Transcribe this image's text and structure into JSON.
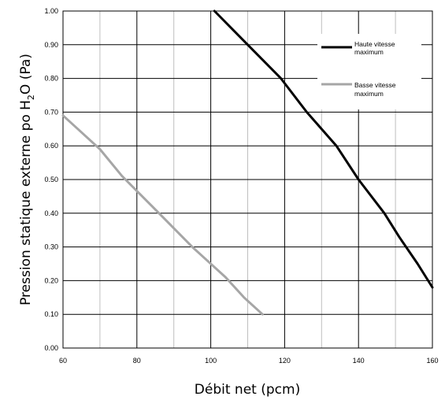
{
  "chart_data": {
    "type": "line",
    "xlabel": "Débit net (pcm)",
    "ylabel_main": "Pression statique externe po H",
    "ylabel_sub": "2",
    "ylabel_tail": "O (Pa)",
    "xlim": [
      60,
      160
    ],
    "ylim": [
      0,
      1.0
    ],
    "x_ticks": [
      "60",
      "80",
      "100",
      "120",
      "140",
      "160"
    ],
    "x_minor_step": 10,
    "y_ticks": [
      "0.00",
      "0.10",
      "0.20",
      "0.30",
      "0.40",
      "0.50",
      "0.60",
      "0.70",
      "0.80",
      "0.90",
      "1.00"
    ],
    "grid": true,
    "legend_position": "top-right",
    "series": [
      {
        "name": "Haute vitesse maximum",
        "legend_lines": [
          "Haute vitesse",
          "maximum"
        ],
        "color": "#000000",
        "points": [
          [
            101,
            1.0
          ],
          [
            110,
            0.9
          ],
          [
            119,
            0.8
          ],
          [
            126,
            0.7
          ],
          [
            134,
            0.6
          ],
          [
            140,
            0.5
          ],
          [
            147,
            0.4
          ],
          [
            151,
            0.33
          ],
          [
            156,
            0.25
          ],
          [
            160,
            0.18
          ]
        ]
      },
      {
        "name": "Basse vitesse maximum",
        "legend_lines": [
          "Basse vitesse",
          "maximum"
        ],
        "color": "#a6a6a6",
        "points": [
          [
            60,
            0.69
          ],
          [
            64,
            0.65
          ],
          [
            70,
            0.59
          ],
          [
            76,
            0.51
          ],
          [
            86,
            0.4
          ],
          [
            95,
            0.3
          ],
          [
            104,
            0.21
          ],
          [
            109,
            0.15
          ],
          [
            114,
            0.1
          ]
        ]
      }
    ]
  }
}
